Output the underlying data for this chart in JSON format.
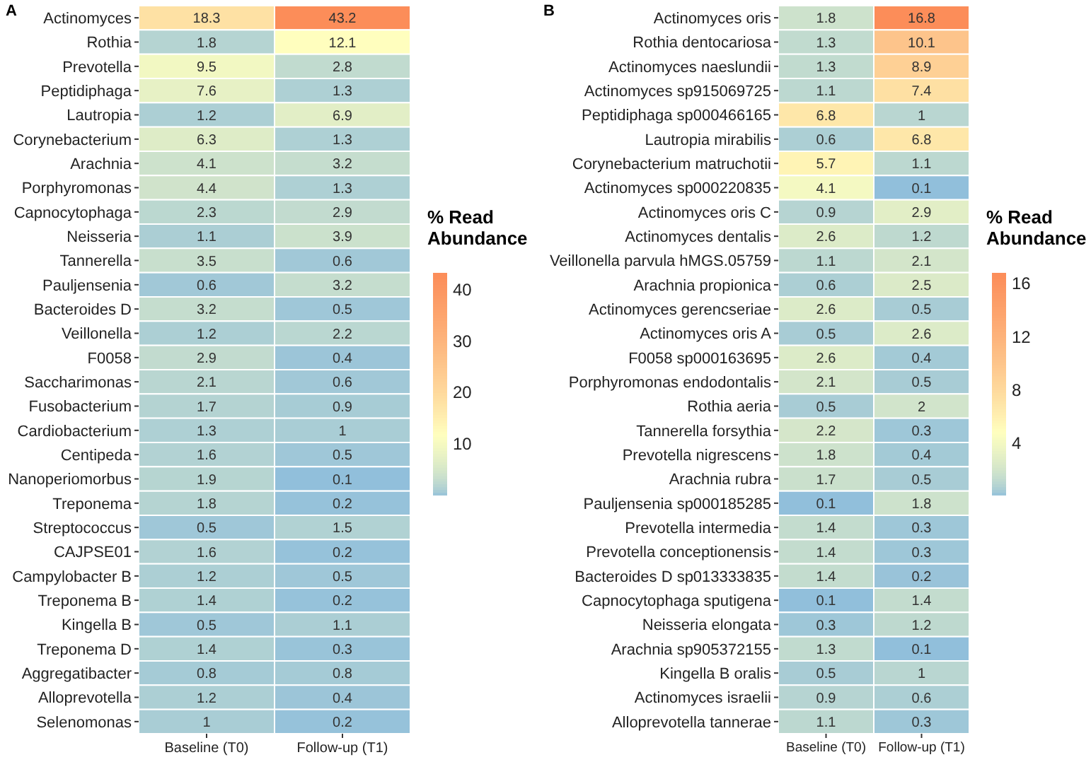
{
  "chart_data": [
    {
      "type": "heatmap",
      "title": "A",
      "clabel": "% Read Abundance",
      "categories": [
        "Baseline (T0)",
        "Follow-up (T1)"
      ],
      "y_categories": [
        "Actinomyces",
        "Rothia",
        "Prevotella",
        "Peptidiphaga",
        "Lautropia",
        "Corynebacterium",
        "Arachnia",
        "Porphyromonas",
        "Capnocytophaga",
        "Neisseria",
        "Tannerella",
        "Pauljensenia",
        "Bacteroides D",
        "Veillonella",
        "F0058",
        "Saccharimonas",
        "Fusobacterium",
        "Cardiobacterium",
        "Centipeda",
        "Nanoperiomorbus",
        "Treponema",
        "Streptococcus",
        "CAJPSE01",
        "Campylobacter B",
        "Treponema B",
        "Kingella B",
        "Treponema D",
        "Aggregatibacter",
        "Alloprevotella",
        "Selenomonas"
      ],
      "cells": [
        [
          18.3,
          43.2
        ],
        [
          1.8,
          12.1
        ],
        [
          9.5,
          2.8
        ],
        [
          7.6,
          1.3
        ],
        [
          1.2,
          6.9
        ],
        [
          6.3,
          1.3
        ],
        [
          4.1,
          3.2
        ],
        [
          4.4,
          1.3
        ],
        [
          2.3,
          2.9
        ],
        [
          1.1,
          3.9
        ],
        [
          3.5,
          0.6
        ],
        [
          0.6,
          3.2
        ],
        [
          3.2,
          0.5
        ],
        [
          1.2,
          2.2
        ],
        [
          2.9,
          0.4
        ],
        [
          2.1,
          0.6
        ],
        [
          1.7,
          0.9
        ],
        [
          1.3,
          1
        ],
        [
          1.6,
          0.5
        ],
        [
          1.9,
          0.1
        ],
        [
          1.8,
          0.2
        ],
        [
          0.5,
          1.5
        ],
        [
          1.6,
          0.2
        ],
        [
          1.2,
          0.5
        ],
        [
          1.4,
          0.2
        ],
        [
          0.5,
          1.1
        ],
        [
          1.4,
          0.3
        ],
        [
          0.8,
          0.8
        ],
        [
          1.2,
          0.4
        ],
        [
          1,
          0.2
        ]
      ],
      "data_labels": true,
      "clim": [
        0.1,
        43.2
      ],
      "cticks": [
        10,
        20,
        30,
        40
      ]
    },
    {
      "type": "heatmap",
      "title": "B",
      "clabel": "% Read Abundance",
      "categories": [
        "Baseline (T0)",
        "Follow-up (T1)"
      ],
      "y_categories": [
        "Actinomyces oris",
        "Rothia dentocariosa",
        "Actinomyces naeslundii",
        "Actinomyces sp915069725",
        "Peptidiphaga sp000466165",
        "Lautropia mirabilis",
        "Corynebacterium matruchotii",
        "Actinomyces sp000220835",
        "Actinomyces oris C",
        "Actinomyces dentalis",
        "Veillonella parvula hMGS.05759",
        "Arachnia propionica",
        "Actinomyces gerencseriae",
        "Actinomyces oris A",
        "F0058 sp000163695",
        "Porphyromonas endodontalis",
        "Rothia aeria",
        "Tannerella forsythia",
        "Prevotella nigrescens",
        "Arachnia rubra",
        "Pauljensenia sp000185285",
        "Prevotella intermedia",
        "Prevotella conceptionensis",
        "Bacteroides D sp013333835",
        "Capnocytophaga sputigena",
        "Neisseria elongata",
        "Arachnia sp905372155",
        "Kingella B oralis",
        "Actinomyces israelii",
        "Alloprevotella tannerae"
      ],
      "cells": [
        [
          1.8,
          16.8
        ],
        [
          1.3,
          10.1
        ],
        [
          1.3,
          8.9
        ],
        [
          1.1,
          7.4
        ],
        [
          6.8,
          1
        ],
        [
          0.6,
          6.8
        ],
        [
          5.7,
          1.1
        ],
        [
          4.1,
          0.1
        ],
        [
          0.9,
          2.9
        ],
        [
          2.6,
          1.2
        ],
        [
          1.1,
          2.1
        ],
        [
          0.6,
          2.5
        ],
        [
          2.6,
          0.5
        ],
        [
          0.5,
          2.6
        ],
        [
          2.6,
          0.4
        ],
        [
          2.1,
          0.5
        ],
        [
          0.5,
          2
        ],
        [
          2.2,
          0.3
        ],
        [
          1.8,
          0.4
        ],
        [
          1.7,
          0.5
        ],
        [
          0.1,
          1.8
        ],
        [
          1.4,
          0.3
        ],
        [
          1.4,
          0.3
        ],
        [
          1.4,
          0.2
        ],
        [
          0.1,
          1.4
        ],
        [
          0.3,
          1.2
        ],
        [
          1.3,
          0.1
        ],
        [
          0.5,
          1
        ],
        [
          0.9,
          0.6
        ],
        [
          1.1,
          0.3
        ]
      ],
      "data_labels": true,
      "clim": [
        0.1,
        16.8
      ],
      "cticks": [
        4,
        8,
        12,
        16
      ]
    }
  ]
}
